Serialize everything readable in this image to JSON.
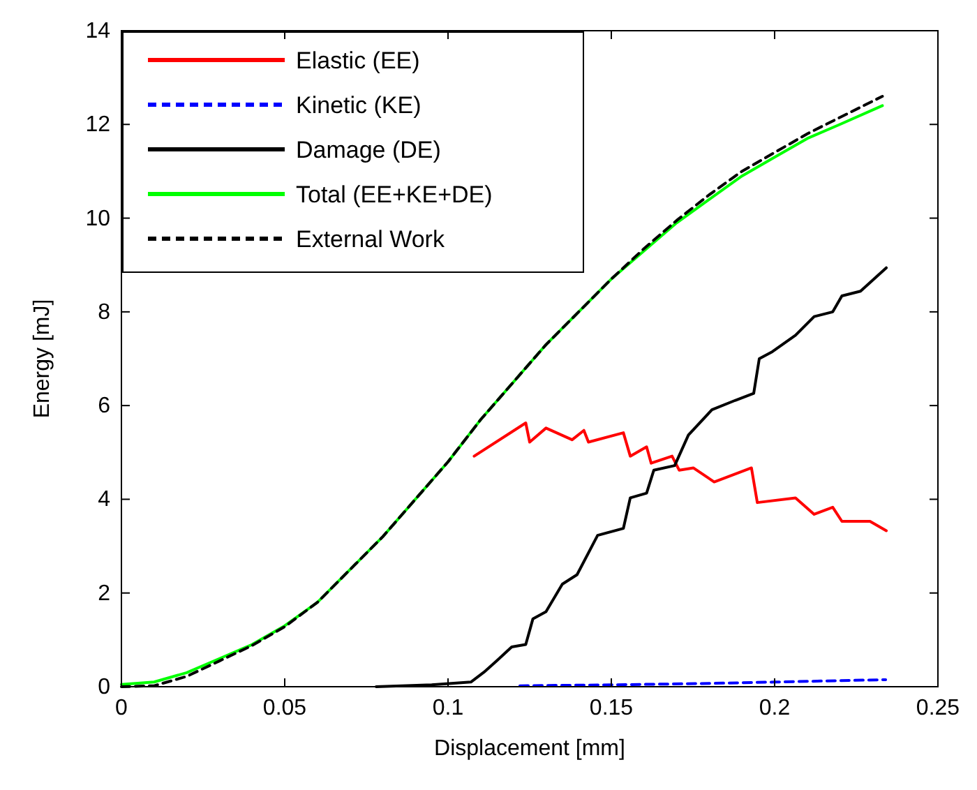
{
  "chart_data": {
    "type": "line",
    "xlabel": "Displacement [mm]",
    "ylabel": "Energy [mJ]",
    "xlim": [
      0,
      0.25
    ],
    "ylim": [
      0,
      14
    ],
    "xticks": [
      0,
      0.05,
      0.1,
      0.15,
      0.2,
      0.25
    ],
    "yticks": [
      0,
      2,
      4,
      6,
      8,
      10,
      12,
      14
    ],
    "grid": false,
    "legend": "top left",
    "marker": "none",
    "series": [
      {
        "name": "Elastic (EE)",
        "color": "#ff0000",
        "line_style": "solid",
        "x": [
          0.108,
          0.1238,
          0.125,
          0.13,
          0.138,
          0.1416,
          0.143,
          0.1537,
          0.1558,
          0.1608,
          0.1622,
          0.1686,
          0.1708,
          0.1751,
          0.1815,
          0.1929,
          0.1947,
          0.2064,
          0.2121,
          0.2178,
          0.2206,
          0.2292,
          0.2342
        ],
        "values": [
          4.92,
          5.63,
          5.22,
          5.52,
          5.27,
          5.47,
          5.22,
          5.42,
          4.92,
          5.12,
          4.77,
          4.92,
          4.62,
          4.67,
          4.37,
          4.67,
          3.93,
          4.03,
          3.68,
          3.83,
          3.53,
          3.53,
          3.33
        ]
      },
      {
        "name": "Kinetic (KE)",
        "color": "#0000ff",
        "line_style": "dashed",
        "x": [
          0.122,
          0.15,
          0.18,
          0.2,
          0.234
        ],
        "values": [
          0.02,
          0.04,
          0.07,
          0.1,
          0.15
        ]
      },
      {
        "name": "Damage (DE)",
        "color": "#000000",
        "line_style": "solid",
        "x": [
          0.078,
          0.095,
          0.107,
          0.111,
          0.115,
          0.1195,
          0.1238,
          0.126,
          0.13,
          0.135,
          0.1395,
          0.1458,
          0.1537,
          0.1558,
          0.1608,
          0.163,
          0.1694,
          0.1736,
          0.1808,
          0.1879,
          0.1936,
          0.1953,
          0.1993,
          0.2064,
          0.2121,
          0.2178,
          0.2206,
          0.2263,
          0.2342
        ],
        "values": [
          0,
          0.04,
          0.1,
          0.31,
          0.56,
          0.85,
          0.9,
          1.45,
          1.6,
          2.19,
          2.39,
          3.23,
          3.38,
          4.03,
          4.13,
          4.62,
          4.72,
          5.37,
          5.91,
          6.11,
          6.26,
          7.0,
          7.15,
          7.5,
          7.9,
          8.0,
          8.34,
          8.44,
          8.94
        ]
      },
      {
        "name": "Total (EE+KE+DE)",
        "color": "#00ff00",
        "line_style": "solid",
        "x": [
          0,
          0.01,
          0.02,
          0.03,
          0.04,
          0.05,
          0.06,
          0.07,
          0.08,
          0.09,
          0.1,
          0.11,
          0.12,
          0.13,
          0.14,
          0.15,
          0.16,
          0.17,
          0.18,
          0.19,
          0.2,
          0.21,
          0.22,
          0.233
        ],
        "values": [
          0.05,
          0.1,
          0.3,
          0.6,
          0.9,
          1.3,
          1.8,
          2.5,
          3.2,
          4.0,
          4.8,
          5.7,
          6.5,
          7.3,
          8.0,
          8.7,
          9.3,
          9.9,
          10.4,
          10.9,
          11.3,
          11.7,
          12.0,
          12.4
        ]
      },
      {
        "name": "External Work",
        "color": "#000000",
        "line_style": "dashed",
        "x": [
          0,
          0.01,
          0.02,
          0.03,
          0.04,
          0.05,
          0.06,
          0.07,
          0.08,
          0.09,
          0.1,
          0.11,
          0.12,
          0.13,
          0.14,
          0.15,
          0.16,
          0.17,
          0.18,
          0.19,
          0.2,
          0.21,
          0.22,
          0.233
        ],
        "values": [
          0,
          0.02,
          0.22,
          0.55,
          0.88,
          1.28,
          1.8,
          2.5,
          3.2,
          4.0,
          4.8,
          5.7,
          6.5,
          7.3,
          8.0,
          8.7,
          9.35,
          9.95,
          10.5,
          11.0,
          11.4,
          11.8,
          12.15,
          12.6
        ]
      }
    ]
  }
}
